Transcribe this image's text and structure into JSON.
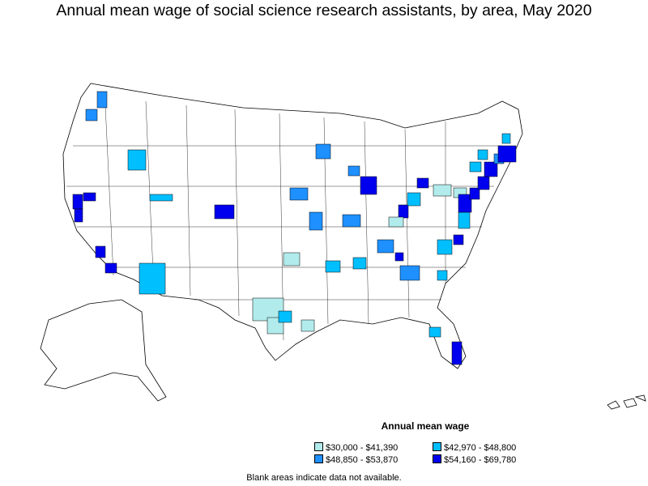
{
  "title": "Annual mean wage of social science research assistants, by area, May 2020",
  "legend": {
    "title": "Annual mean wage",
    "items": [
      {
        "label": "$30,000 - $41,390",
        "color": "#b2ebeb"
      },
      {
        "label": "$42,970 - $48,800",
        "color": "#00bfff"
      },
      {
        "label": "$48,850 - $53,870",
        "color": "#1e90ff"
      },
      {
        "label": "$54,160 - $69,780",
        "color": "#0000ee"
      }
    ]
  },
  "note": "Blank areas indicate data not available.",
  "colors": {
    "tier1": "#b2ebeb",
    "tier2": "#00bfff",
    "tier3": "#1e90ff",
    "tier4": "#0000ee",
    "border": "#000000"
  }
}
